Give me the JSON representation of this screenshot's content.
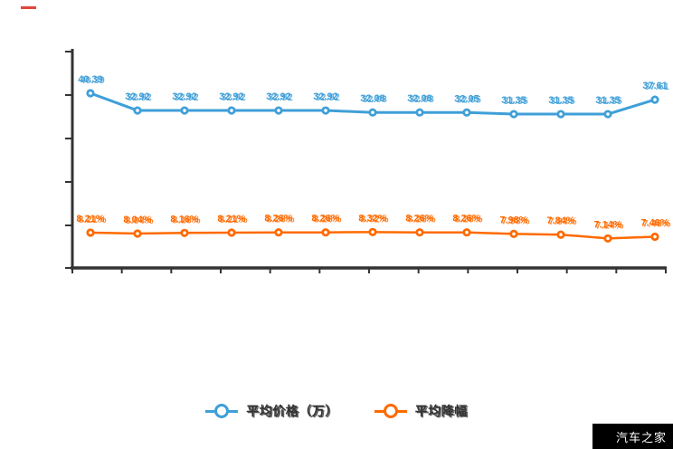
{
  "page": {
    "background": "#ffffff"
  },
  "decor": {
    "red_dash_color": "#e2453a"
  },
  "axes": {
    "color": "#333333",
    "y_tick_count": 6,
    "x_tick_count": 13,
    "tick_labels_visible": false
  },
  "legend": {
    "position": "bottom",
    "items": [
      {
        "label": "平均价格（万）",
        "color": "#3f9fd8"
      },
      {
        "label": "平均降幅",
        "color": "#ff6a00"
      }
    ]
  },
  "watermark": {
    "text": "汽车之家",
    "bg": "#000000",
    "color": "#ffffff"
  },
  "chart_data": {
    "type": "line",
    "x": [
      1,
      2,
      3,
      4,
      5,
      6,
      7,
      8,
      9,
      10,
      11,
      12,
      13
    ],
    "x_tick_labels": [],
    "grid": false,
    "legend_position": "bottom",
    "note": "data labels in source image are double-printed/garbled; values are best reading",
    "series": [
      {
        "name": "平均价格（万）",
        "color": "#3f9fd8",
        "values": [
          40.39,
          32.92,
          32.92,
          32.92,
          32.92,
          32.92,
          32.08,
          32.08,
          32.05,
          31.35,
          31.35,
          31.35,
          37.61
        ],
        "labels": [
          "40.39",
          "32.92",
          "32.92",
          "32.92",
          "32.92",
          "32.92",
          "32.08",
          "32.08",
          "32.05",
          "31.35",
          "31.35",
          "31.35",
          "37.61"
        ]
      },
      {
        "name": "平均降幅",
        "color": "#ff6a00",
        "values": [
          8.21,
          8.04,
          8.16,
          8.21,
          8.26,
          8.26,
          8.32,
          8.26,
          8.26,
          7.98,
          7.84,
          7.14,
          7.46
        ],
        "labels": [
          "8.21%",
          "8.04%",
          "8.16%",
          "8.21%",
          "8.26%",
          "8.26%",
          "8.32%",
          "8.26%",
          "8.26%",
          "7.98%",
          "7.84%",
          "7.14%",
          "7.46%"
        ]
      }
    ]
  }
}
